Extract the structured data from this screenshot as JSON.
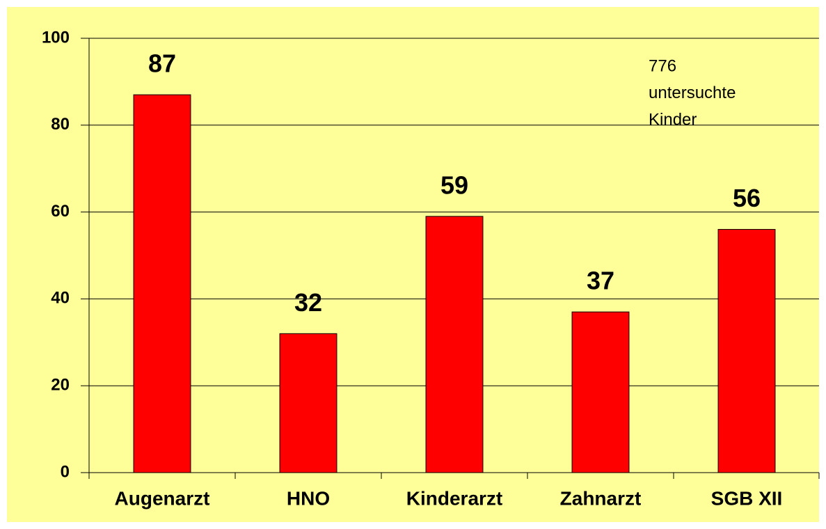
{
  "chart_data": {
    "type": "bar",
    "categories": [
      "Augenarzt",
      "HNO",
      "Kinderarzt",
      "Zahnarzt",
      "SGB XII"
    ],
    "values": [
      87,
      32,
      59,
      37,
      56
    ],
    "color": "#ff0000",
    "ylim": [
      0,
      100
    ],
    "yticks": [
      0,
      20,
      40,
      60,
      80,
      100
    ],
    "grid": true,
    "annotation": [
      "776",
      "untersuchte",
      "Kinder"
    ]
  }
}
